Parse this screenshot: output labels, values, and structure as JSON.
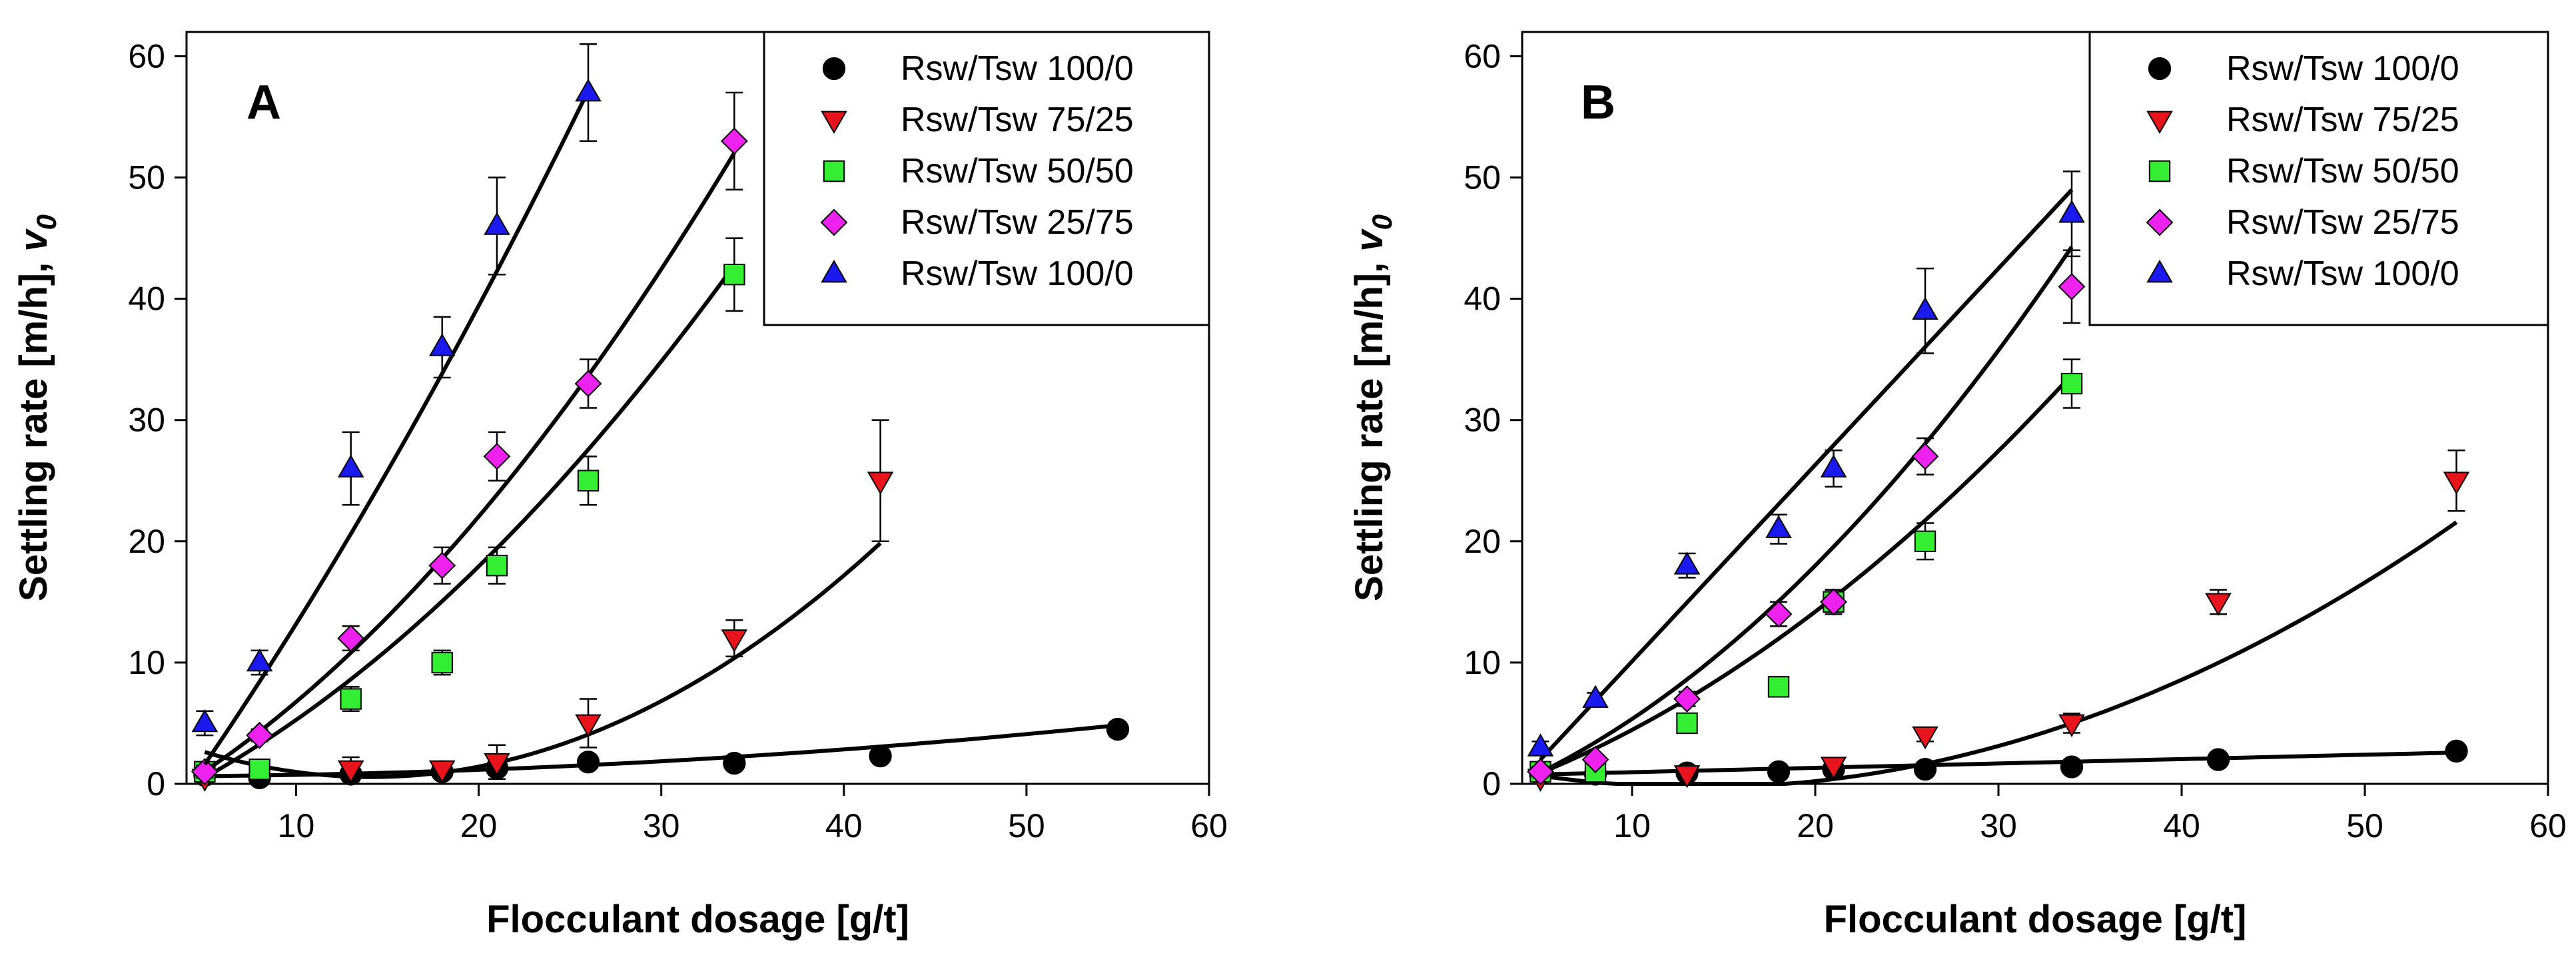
{
  "figure": {
    "colors": {
      "Rsw/Tsw 100/0": "#000000",
      "Rsw/Tsw 75/25": "#e8141c",
      "Rsw/Tsw 50/50": "#33ee33",
      "Rsw/Tsw 25/75": "#ee22ee",
      "Rsw/Tsw 100/0 (triangle)": "#1a1aee"
    }
  },
  "chart_data": [
    {
      "type": "scatter",
      "panel": "A",
      "xlabel": "Flocculant dosage [g/t]",
      "ylabel_main": "Settling rate [m/h], ",
      "ylabel_var": "v",
      "ylabel_sub": "0",
      "xlim": [
        4,
        60
      ],
      "ylim": [
        0,
        62
      ],
      "xticks": [
        10,
        20,
        30,
        40,
        50,
        60
      ],
      "yticks": [
        0,
        10,
        20,
        30,
        40,
        50,
        60
      ],
      "legend_position": "top-right",
      "series": [
        {
          "name": "Rsw/Tsw 100/0",
          "marker": "circle",
          "color": "#000000",
          "x": [
            5,
            8,
            13,
            18,
            21,
            26,
            34,
            42,
            55
          ],
          "y": [
            0.7,
            0.5,
            0.8,
            1.0,
            1.3,
            1.8,
            1.7,
            2.3,
            4.5
          ],
          "err": [
            0.3,
            0.3,
            0.4,
            0.4,
            0.4,
            0.5,
            0.4,
            0.4,
            0.6
          ],
          "fit": [
            0.6,
            0,
            0.0014
          ]
        },
        {
          "name": "Rsw/Tsw 75/25",
          "marker": "triangle-down",
          "color": "#e8141c",
          "x": [
            5,
            13,
            18,
            21,
            26,
            34,
            42
          ],
          "y": [
            0.5,
            1.2,
            1.2,
            1.8,
            5,
            12,
            25
          ],
          "err": [
            0.4,
            1.0,
            0.5,
            1.4,
            2.0,
            1.5,
            5.0
          ],
          "fit": [
            5.5,
            -0.7,
            0.0248
          ]
        },
        {
          "name": "Rsw/Tsw 50/50",
          "marker": "square",
          "color": "#33ee33",
          "x": [
            5,
            8,
            13,
            18,
            21,
            26,
            34
          ],
          "y": [
            1.0,
            1.2,
            7,
            10,
            18,
            25,
            42
          ],
          "err": [
            0.6,
            0.5,
            1.0,
            1.0,
            1.5,
            2.0,
            3.0
          ],
          "fit": [
            -3.15,
            0.63,
            0.0212
          ]
        },
        {
          "name": "Rsw/Tsw 25/75",
          "marker": "diamond",
          "color": "#ee22ee",
          "x": [
            5,
            8,
            13,
            18,
            21,
            26,
            34
          ],
          "y": [
            1.0,
            4,
            12,
            18,
            27,
            33,
            53
          ],
          "err": [
            0.5,
            0.5,
            1.0,
            1.5,
            2.0,
            2.0,
            4.0
          ],
          "fit": [
            -3.4,
            0.76,
            0.0256
          ]
        },
        {
          "name": "Rsw/Tsw 100/0",
          "marker": "triangle-up",
          "color": "#1a1aee",
          "x": [
            5,
            8,
            13,
            18,
            21,
            26
          ],
          "y": [
            5,
            10,
            26,
            36,
            46,
            57
          ],
          "err": [
            1.0,
            1.0,
            3.0,
            2.5,
            4.0,
            4.0
          ],
          "fit": [
            -8.9,
            2.0,
            0.0208
          ]
        }
      ]
    },
    {
      "type": "scatter",
      "panel": "B",
      "xlabel": "Flocculant dosage [g/t]",
      "ylabel_main": "Settling rate [m/h], ",
      "ylabel_var": "v",
      "ylabel_sub": "0",
      "xlim": [
        4,
        60
      ],
      "ylim": [
        0,
        62
      ],
      "xticks": [
        10,
        20,
        30,
        40,
        50,
        60
      ],
      "yticks": [
        0,
        10,
        20,
        30,
        40,
        50,
        60
      ],
      "legend_position": "top-right",
      "series": [
        {
          "name": "Rsw/Tsw 100/0",
          "marker": "circle",
          "color": "#000000",
          "x": [
            5,
            8,
            13,
            18,
            21,
            26,
            34,
            42,
            55
          ],
          "y": [
            0.8,
            0.8,
            0.9,
            1.0,
            1.2,
            1.2,
            1.4,
            2.0,
            2.7
          ],
          "err": [
            0.2,
            0.2,
            0.2,
            0.2,
            0.2,
            0.3,
            0.3,
            0.3,
            0.4
          ],
          "fit": [
            0.6,
            0.036,
            0
          ]
        },
        {
          "name": "Rsw/Tsw 75/25",
          "marker": "triangle-down",
          "color": "#e8141c",
          "x": [
            5,
            13,
            21,
            26,
            34,
            42,
            55
          ],
          "y": [
            0.5,
            0.8,
            1.5,
            4,
            5,
            15,
            25
          ],
          "err": [
            0.3,
            0.3,
            0.5,
            0.5,
            0.8,
            1.0,
            2.5
          ],
          "fit": [
            2.1,
            -0.35,
            0.0128
          ]
        },
        {
          "name": "Rsw/Tsw 50/50",
          "marker": "square",
          "color": "#33ee33",
          "x": [
            5,
            8,
            13,
            18,
            21,
            26,
            34
          ],
          "y": [
            1.0,
            1.0,
            5,
            8,
            15,
            20,
            33
          ],
          "err": [
            0.3,
            0.3,
            0.5,
            0.5,
            1.0,
            1.5,
            2.0
          ],
          "fit": [
            -1.8,
            0.45,
            0.0175
          ]
        },
        {
          "name": "Rsw/Tsw 25/75",
          "marker": "diamond",
          "color": "#ee22ee",
          "x": [
            5,
            8,
            13,
            18,
            21,
            26,
            34
          ],
          "y": [
            1.0,
            2,
            7,
            14,
            15,
            27,
            41
          ],
          "err": [
            0.4,
            0.4,
            0.6,
            1.0,
            1.0,
            1.5,
            3.0
          ],
          "fit": [
            -2.2,
            0.5,
            0.0255
          ]
        },
        {
          "name": "Rsw/Tsw 100/0",
          "marker": "triangle-up",
          "color": "#1a1aee",
          "x": [
            5,
            8,
            13,
            18,
            21,
            26,
            34
          ],
          "y": [
            3,
            7,
            18,
            21,
            26,
            39,
            47
          ],
          "err": [
            0.5,
            0.5,
            1.0,
            1.2,
            1.5,
            3.5,
            3.5
          ],
          "fit": [
            -6.1,
            1.62,
            0
          ]
        }
      ]
    }
  ]
}
